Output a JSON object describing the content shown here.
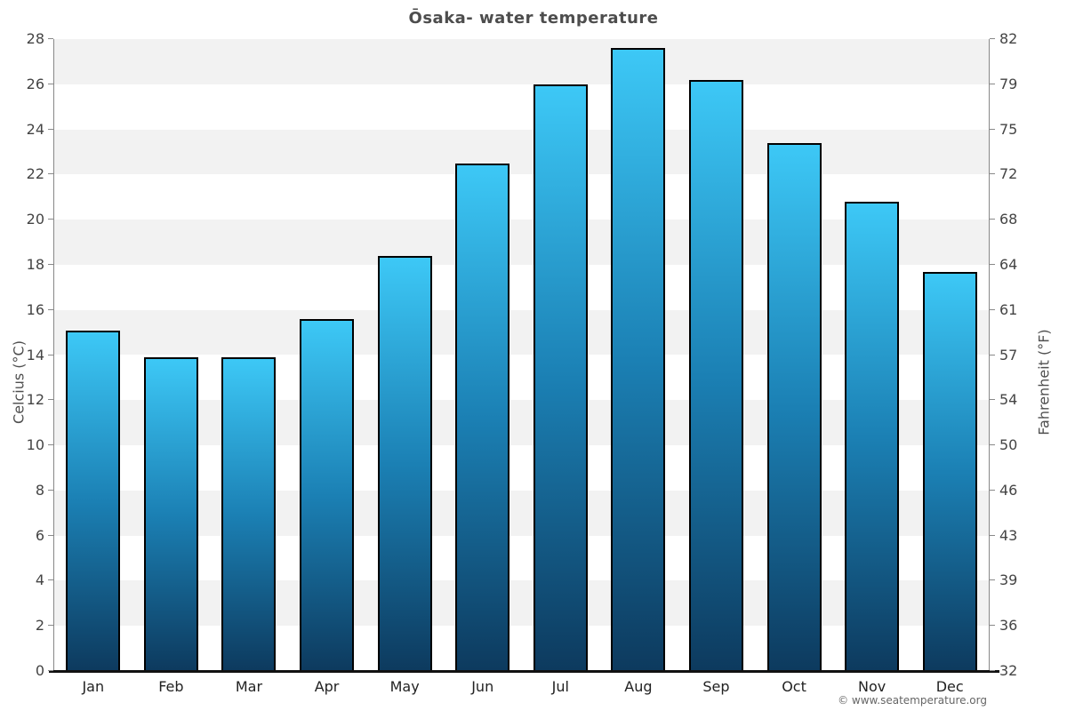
{
  "title": "Ōsaka- water temperature",
  "copyright": "© www.seatemperature.org",
  "chart_data": {
    "type": "bar",
    "title": "Ōsaka- water temperature",
    "categories": [
      "Jan",
      "Feb",
      "Mar",
      "Apr",
      "May",
      "Jun",
      "Jul",
      "Aug",
      "Sep",
      "Oct",
      "Nov",
      "Dec"
    ],
    "values": [
      15.1,
      13.9,
      13.9,
      15.6,
      18.4,
      22.5,
      26.0,
      27.6,
      26.2,
      23.4,
      20.8,
      17.7
    ],
    "ylabel_left": "Celcius (°C)",
    "ylabel_right": "Fahrenheit (°F)",
    "ylim_left": [
      0,
      28
    ],
    "yticks_left": [
      0,
      2,
      4,
      6,
      8,
      10,
      12,
      14,
      16,
      18,
      20,
      22,
      24,
      26,
      28
    ],
    "yticks_right_labels": [
      "32",
      "36",
      "39",
      "43",
      "46",
      "50",
      "54",
      "57",
      "61",
      "64",
      "68",
      "72",
      "75",
      "79",
      "82"
    ],
    "grid": "alternating-horizontal-bands",
    "legend": "none",
    "colors": {
      "bar_top": "#3dc8f6",
      "bar_mid": "#1b80b4",
      "bar_bottom": "#0d3a5e",
      "bar_border": "#000000",
      "band_gray": "#f2f2f2",
      "band_white": "#ffffff",
      "axis_line": "#888888",
      "baseline": "#111111",
      "title_color": "#4d4d4d",
      "tick_color": "#444444",
      "month_color": "#222222",
      "axis_title_color": "#4f4f4f",
      "copyright_color": "#666666"
    }
  }
}
